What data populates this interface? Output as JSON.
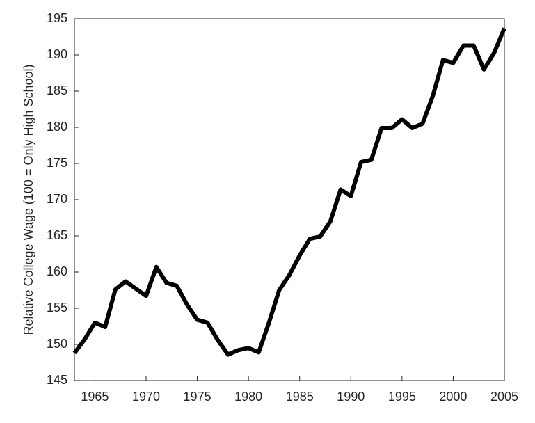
{
  "chart_data": {
    "type": "line",
    "y_label": "Relative College Wage (100 = Only High School)",
    "x": [
      1963,
      1964,
      1965,
      1966,
      1967,
      1968,
      1969,
      1970,
      1971,
      1972,
      1973,
      1974,
      1975,
      1976,
      1977,
      1978,
      1979,
      1980,
      1981,
      1982,
      1983,
      1984,
      1985,
      1986,
      1987,
      1988,
      1989,
      1990,
      1991,
      1992,
      1993,
      1994,
      1995,
      1996,
      1997,
      1998,
      1999,
      2000,
      2001,
      2002,
      2003,
      2004,
      2005
    ],
    "series": [
      {
        "color": "#000000",
        "values": [
          148.8,
          150.7,
          153.0,
          152.4,
          157.6,
          158.7,
          157.7,
          156.7,
          160.7,
          158.5,
          158.1,
          155.5,
          153.4,
          153.0,
          150.6,
          148.6,
          149.2,
          149.5,
          148.9,
          153.0,
          157.5,
          159.6,
          162.3,
          164.6,
          164.9,
          167.0,
          171.4,
          170.5,
          175.2,
          175.5,
          179.9,
          179.9,
          181.1,
          179.9,
          180.5,
          184.3,
          189.3,
          188.9,
          191.3,
          191.3,
          188.0,
          190.3,
          193.7
        ]
      }
    ],
    "xlim": [
      1963,
      2005
    ],
    "xticks": [
      1965,
      1970,
      1975,
      1980,
      1985,
      1990,
      1995,
      2000,
      2005
    ],
    "ylim": [
      145,
      195
    ],
    "yticks": [
      145,
      150,
      155,
      160,
      165,
      170,
      175,
      180,
      185,
      190,
      195
    ]
  }
}
